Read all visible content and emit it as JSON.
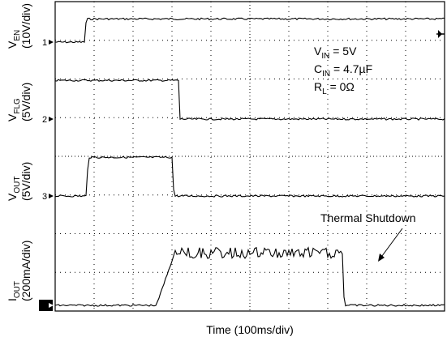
{
  "chart_data": {
    "type": "line",
    "xlabel": "Time (100ms/div)",
    "channels": [
      {
        "id": "1",
        "name_main": "V",
        "name_sub": "EN",
        "scale": "(10V/div)"
      },
      {
        "id": "2",
        "name_main": "V",
        "name_sub": "FLG",
        "scale": "(5V/div)"
      },
      {
        "id": "3",
        "name_main": "V",
        "name_sub": "OUT",
        "scale": "(5V/div)"
      },
      {
        "id": "4",
        "name_main": "I",
        "name_sub": "OUT",
        "scale": "(200mA/div)"
      }
    ],
    "conditions": [
      {
        "main": "V",
        "sub": "IN",
        "rest": " = 5V"
      },
      {
        "main": "C",
        "sub": "IN",
        "rest": " = 4.7µF"
      },
      {
        "main": "R",
        "sub": "L",
        "rest": " = 0Ω"
      }
    ],
    "annotation": "Thermal Shutdown",
    "grid": {
      "x_divisions": 10,
      "y_divisions": 8,
      "style": "dotted"
    },
    "series": [
      {
        "channel": "1",
        "unit_per_div": "10V",
        "points": [
          [
            0,
            0
          ],
          [
            0.75,
            0
          ],
          [
            0.8,
            0.6
          ],
          [
            10,
            0.6
          ]
        ]
      },
      {
        "channel": "2",
        "unit_per_div": "5V",
        "points": [
          [
            0,
            1
          ],
          [
            3.17,
            1
          ],
          [
            3.17,
            0
          ],
          [
            10,
            0
          ]
        ]
      },
      {
        "channel": "3",
        "unit_per_div": "5V",
        "points": [
          [
            0,
            0
          ],
          [
            0.8,
            0
          ],
          [
            0.85,
            1
          ],
          [
            3.0,
            1
          ],
          [
            3.05,
            0
          ],
          [
            10,
            0
          ]
        ]
      },
      {
        "channel": "4",
        "unit_per_div": "200mA",
        "points": [
          [
            0,
            0
          ],
          [
            2.6,
            0
          ],
          [
            3.1,
            1.45
          ],
          [
            3.4,
            1.35
          ],
          [
            4.4,
            1.35
          ],
          [
            5.3,
            1.35
          ],
          [
            6.3,
            1.35
          ],
          [
            7.4,
            1.35
          ],
          [
            7.42,
            0
          ],
          [
            10,
            0
          ]
        ]
      }
    ]
  }
}
